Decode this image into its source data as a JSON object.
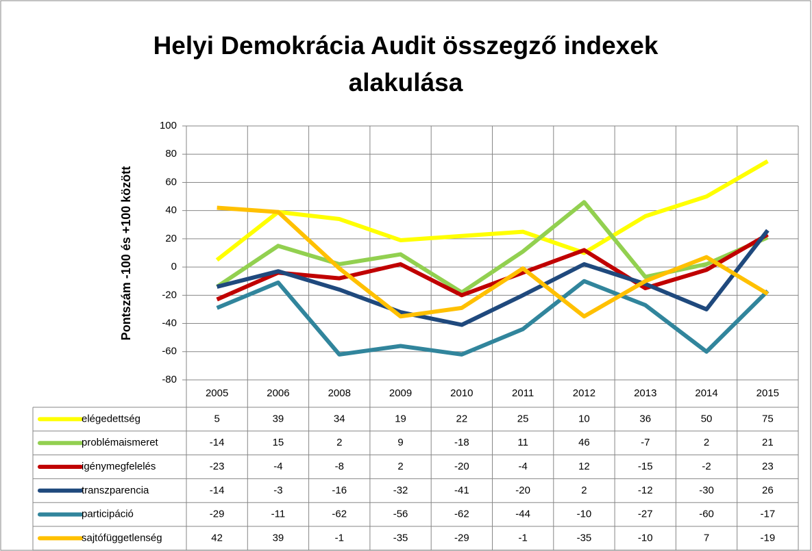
{
  "chart_data": {
    "type": "line",
    "title": "Helyi Demokrácia Audit összegző indexek alakulása",
    "y_label": "Pontszám -100 és +100 között",
    "categories": [
      "2005",
      "2006",
      "2008",
      "2009",
      "2010",
      "2011",
      "2012",
      "2013",
      "2014",
      "2015"
    ],
    "series": [
      {
        "name": "elégedettség",
        "color": "#ffff00",
        "values": [
          5,
          39,
          34,
          19,
          22,
          25,
          10,
          36,
          50,
          75
        ]
      },
      {
        "name": "problémaismeret",
        "color": "#92d050",
        "values": [
          -14,
          15,
          2,
          9,
          -18,
          11,
          46,
          -7,
          2,
          21
        ]
      },
      {
        "name": "igénymegfelelés",
        "color": "#c00000",
        "values": [
          -23,
          -4,
          -8,
          2,
          -20,
          -4,
          12,
          -15,
          -2,
          23
        ]
      },
      {
        "name": "transzparencia",
        "color": "#1f497d",
        "values": [
          -14,
          -3,
          -16,
          -32,
          -41,
          -20,
          2,
          -12,
          -30,
          26
        ]
      },
      {
        "name": "participáció",
        "color": "#31859c",
        "values": [
          -29,
          -11,
          -62,
          -56,
          -62,
          -44,
          -10,
          -27,
          -60,
          -17
        ]
      },
      {
        "name": "sajtófüggetlenség",
        "color": "#ffc000",
        "values": [
          42,
          39,
          -1,
          -35,
          -29,
          -1,
          -35,
          -10,
          7,
          -19
        ]
      }
    ],
    "ylim": [
      -80,
      100
    ],
    "yticks": [
      -80,
      -60,
      -40,
      -20,
      0,
      20,
      40,
      60,
      80,
      100
    ],
    "grid": true
  }
}
